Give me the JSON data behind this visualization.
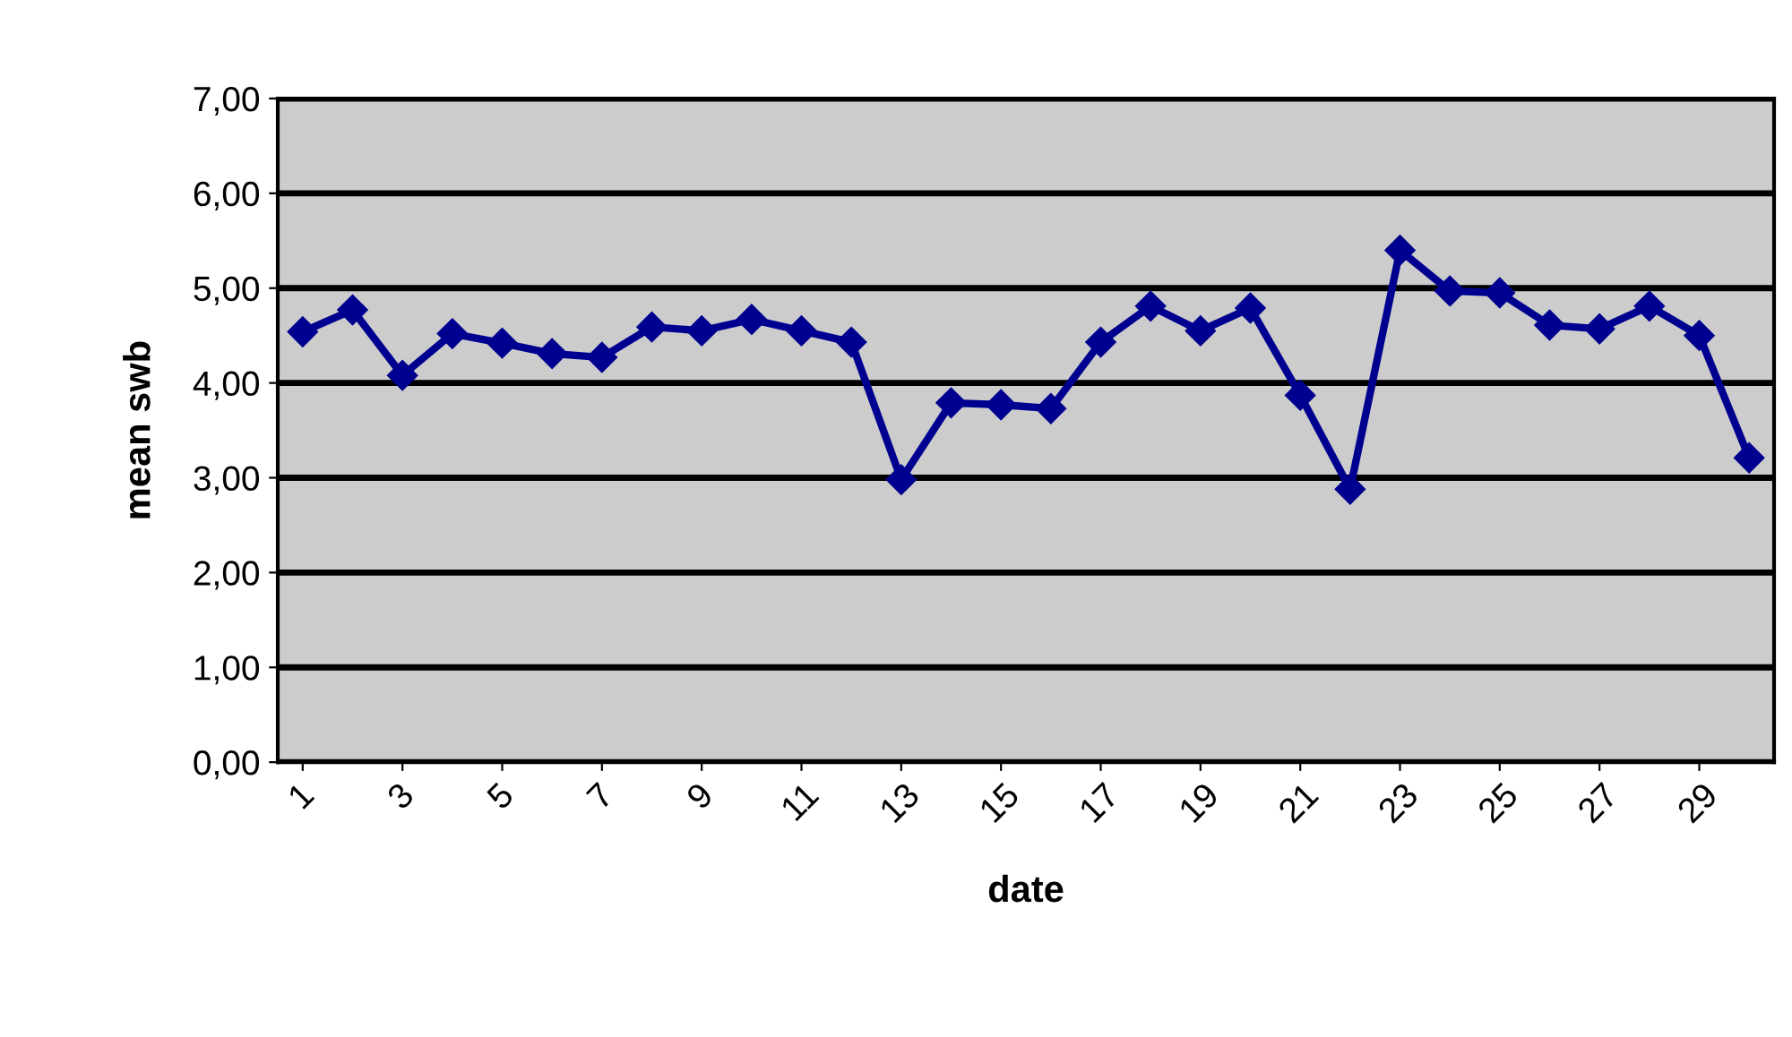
{
  "chart_data": {
    "type": "line",
    "xlabel": "date",
    "ylabel": "mean swb",
    "x": [
      1,
      2,
      3,
      4,
      5,
      6,
      7,
      8,
      9,
      10,
      11,
      12,
      13,
      14,
      15,
      16,
      17,
      18,
      19,
      20,
      21,
      22,
      23,
      24,
      25,
      26,
      27,
      28,
      29,
      30
    ],
    "series": [
      {
        "color": "#000090",
        "values": [
          4.54,
          4.77,
          4.08,
          4.52,
          4.42,
          4.31,
          4.27,
          4.59,
          4.55,
          4.67,
          4.55,
          4.43,
          2.98,
          3.79,
          3.77,
          3.73,
          4.43,
          4.81,
          4.55,
          4.79,
          3.87,
          2.88,
          5.4,
          4.97,
          4.95,
          4.61,
          4.57,
          4.81,
          4.5,
          3.21
        ]
      }
    ],
    "xlim": [
      0.5,
      30.5
    ],
    "xticks": [
      1,
      3,
      5,
      7,
      9,
      11,
      13,
      15,
      17,
      19,
      21,
      23,
      25,
      27,
      29
    ],
    "ylim": [
      0,
      7
    ],
    "yticks": [
      {
        "value": 0,
        "label": "0,00"
      },
      {
        "value": 1,
        "label": "1,00"
      },
      {
        "value": 2,
        "label": "2,00"
      },
      {
        "value": 3,
        "label": "3,00"
      },
      {
        "value": 4,
        "label": "4,00"
      },
      {
        "value": 5,
        "label": "5,00"
      },
      {
        "value": 6,
        "label": "6,00"
      },
      {
        "value": 7,
        "label": "7,00"
      }
    ],
    "grid": "y",
    "marker": "diamond",
    "line_style": "solid",
    "legend": false
  }
}
